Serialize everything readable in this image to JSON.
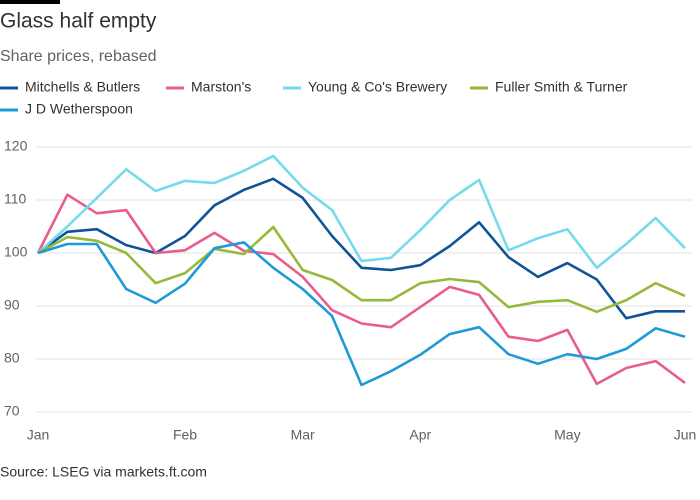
{
  "chart_data": {
    "type": "line",
    "title": "Glass half empty",
    "subtitle": "Share prices, rebased",
    "source": "Source: LSEG via markets.ft.com",
    "categories": [
      "Jan",
      null,
      null,
      null,
      null,
      "Feb",
      null,
      null,
      null,
      "Mar",
      null,
      null,
      null,
      "Apr",
      null,
      null,
      null,
      null,
      "May",
      null,
      null,
      null,
      "Jun"
    ],
    "series": [
      {
        "name": "Mitchells & Butlers",
        "color": "#0f5499",
        "values": [
          100,
          104,
          104.5,
          101.5,
          100,
          103.2,
          109,
          111.9,
          114,
          110.4,
          103.2,
          97.2,
          96.8,
          97.7,
          101.3,
          105.8,
          99.2,
          95.5,
          98.1,
          95,
          87.7,
          89,
          89
        ]
      },
      {
        "name": "Marston's",
        "color": "#e95d8c",
        "values": [
          100,
          111,
          107.5,
          108.1,
          100,
          100.5,
          103.8,
          100.4,
          99.8,
          95.5,
          89.2,
          86.7,
          86,
          89.8,
          93.6,
          92.1,
          84.2,
          83.4,
          85.5,
          75.3,
          78.3,
          79.6,
          75.5
        ]
      },
      {
        "name": "Young & Co's Brewery",
        "color": "#74dbec",
        "values": [
          100,
          105,
          110.4,
          115.8,
          111.7,
          113.6,
          113.2,
          115.5,
          118.3,
          112.3,
          108.1,
          98.5,
          99.1,
          104.3,
          110,
          113.8,
          100.5,
          102.8,
          104.5,
          97.2,
          101.7,
          106.6,
          100.9
        ]
      },
      {
        "name": "Fuller Smith & Turner",
        "color": "#96b93b",
        "values": [
          100,
          103,
          102.3,
          100,
          94.3,
          96.2,
          100.8,
          99.8,
          104.9,
          96.8,
          94.9,
          91.1,
          91.1,
          94.3,
          95.1,
          94.5,
          89.8,
          90.8,
          91.1,
          88.9,
          91.1,
          94.3,
          91.9
        ]
      },
      {
        "name": "J D Wetherspoon",
        "color": "#1e9ad6",
        "values": [
          100,
          101.7,
          101.7,
          93.2,
          90.6,
          94.2,
          100.9,
          102,
          97.2,
          93.2,
          88.1,
          75.1,
          77.7,
          80.8,
          84.7,
          86,
          80.9,
          79.1,
          80.9,
          80,
          81.9,
          85.8,
          84.2
        ]
      }
    ],
    "ylim": [
      70,
      120
    ],
    "yticks": [
      70,
      80,
      90,
      100,
      110,
      120
    ],
    "grid": true
  }
}
